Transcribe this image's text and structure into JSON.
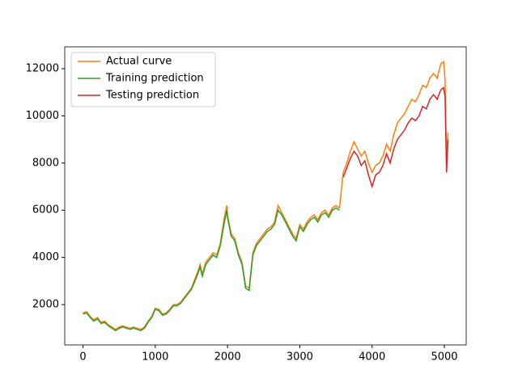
{
  "chart_data": {
    "type": "line",
    "xlim": [
      -252.5,
      5302.5
    ],
    "xticks": [
      0,
      1000,
      2000,
      3000,
      4000,
      5000
    ],
    "ylim": [
      290,
      12925
    ],
    "yticks": [
      2000,
      4000,
      6000,
      8000,
      10000,
      12000
    ],
    "grid": false,
    "legend": "upper left",
    "series": [
      {
        "name": "Actual curve",
        "color": "#ff7f0e",
        "x": [
          0,
          50,
          100,
          150,
          200,
          250,
          300,
          350,
          400,
          450,
          500,
          550,
          600,
          650,
          700,
          750,
          800,
          850,
          900,
          950,
          1000,
          1050,
          1100,
          1150,
          1200,
          1250,
          1300,
          1350,
          1400,
          1450,
          1500,
          1550,
          1600,
          1620,
          1650,
          1700,
          1750,
          1800,
          1850,
          1900,
          1950,
          1990,
          2000,
          2050,
          2100,
          2150,
          2200,
          2250,
          2300,
          2350,
          2400,
          2450,
          2500,
          2550,
          2600,
          2650,
          2700,
          2750,
          2800,
          2850,
          2900,
          2950,
          3000,
          3050,
          3100,
          3150,
          3200,
          3250,
          3300,
          3350,
          3400,
          3450,
          3500,
          3550,
          3600,
          3650,
          3700,
          3750,
          3800,
          3850,
          3900,
          3950,
          4000,
          4050,
          4100,
          4150,
          4200,
          4250,
          4300,
          4350,
          4400,
          4450,
          4500,
          4550,
          4600,
          4650,
          4700,
          4750,
          4800,
          4850,
          4900,
          4950,
          4990,
          5010,
          5030,
          5050
        ],
        "values": [
          1650,
          1700,
          1500,
          1350,
          1450,
          1250,
          1300,
          1150,
          1050,
          950,
          1050,
          1100,
          1050,
          1000,
          1050,
          1000,
          950,
          1050,
          1300,
          1500,
          1850,
          1800,
          1600,
          1650,
          1800,
          2000,
          2000,
          2100,
          2300,
          2500,
          2700,
          3100,
          3500,
          3700,
          3300,
          3800,
          4000,
          4200,
          4100,
          4600,
          5600,
          6200,
          5800,
          5000,
          4800,
          4200,
          3800,
          2800,
          2700,
          4200,
          4600,
          4800,
          5000,
          5200,
          5300,
          5500,
          6200,
          5900,
          5600,
          5300,
          5000,
          4800,
          5400,
          5200,
          5500,
          5700,
          5800,
          5600,
          5900,
          6000,
          5800,
          6100,
          6200,
          6100,
          7600,
          8000,
          8500,
          8900,
          8600,
          8300,
          8500,
          8000,
          7600,
          7900,
          8000,
          8300,
          8800,
          8500,
          9200,
          9700,
          9900,
          10100,
          10400,
          10700,
          10600,
          10900,
          11300,
          11200,
          11600,
          11800,
          11600,
          12200,
          12300,
          11500,
          8100,
          9300
        ]
      },
      {
        "name": "Training prediction",
        "color": "#2ca02c",
        "x": [
          0,
          50,
          100,
          150,
          200,
          250,
          300,
          350,
          400,
          450,
          500,
          550,
          600,
          650,
          700,
          750,
          800,
          850,
          900,
          950,
          1000,
          1050,
          1100,
          1150,
          1200,
          1250,
          1300,
          1350,
          1400,
          1450,
          1500,
          1550,
          1600,
          1620,
          1650,
          1700,
          1750,
          1800,
          1850,
          1900,
          1950,
          1990,
          2000,
          2050,
          2100,
          2150,
          2200,
          2250,
          2300,
          2350,
          2400,
          2450,
          2500,
          2550,
          2600,
          2650,
          2700,
          2750,
          2800,
          2850,
          2900,
          2950,
          3000,
          3050,
          3100,
          3150,
          3200,
          3250,
          3300,
          3350,
          3400,
          3450,
          3500,
          3550
        ],
        "values": [
          1600,
          1650,
          1450,
          1300,
          1400,
          1200,
          1250,
          1100,
          1000,
          900,
          1000,
          1050,
          1000,
          950,
          1000,
          950,
          900,
          1000,
          1250,
          1450,
          1800,
          1750,
          1550,
          1600,
          1750,
          1950,
          1950,
          2050,
          2250,
          2450,
          2650,
          3000,
          3400,
          3600,
          3200,
          3700,
          3900,
          4100,
          4000,
          4500,
          5400,
          6000,
          5700,
          4900,
          4700,
          4100,
          3700,
          2700,
          2600,
          4100,
          4500,
          4700,
          4900,
          5100,
          5200,
          5400,
          6000,
          5800,
          5500,
          5200,
          4900,
          4700,
          5300,
          5100,
          5400,
          5600,
          5700,
          5500,
          5800,
          5900,
          5700,
          6000,
          6100,
          6000
        ]
      },
      {
        "name": "Testing prediction",
        "color": "#d62728",
        "x": [
          3600,
          3650,
          3700,
          3750,
          3800,
          3850,
          3900,
          3950,
          4000,
          4050,
          4100,
          4150,
          4200,
          4250,
          4300,
          4350,
          4400,
          4450,
          4500,
          4550,
          4600,
          4650,
          4700,
          4750,
          4800,
          4850,
          4900,
          4950,
          4990,
          5010,
          5030,
          5050
        ],
        "values": [
          7400,
          7800,
          8200,
          8500,
          8300,
          7900,
          8100,
          7500,
          7000,
          7500,
          7600,
          7900,
          8400,
          8000,
          8600,
          9000,
          9200,
          9400,
          9700,
          9900,
          9800,
          10000,
          10400,
          10300,
          10700,
          10900,
          10700,
          11100,
          11200,
          10800,
          7600,
          9000
        ]
      }
    ]
  }
}
